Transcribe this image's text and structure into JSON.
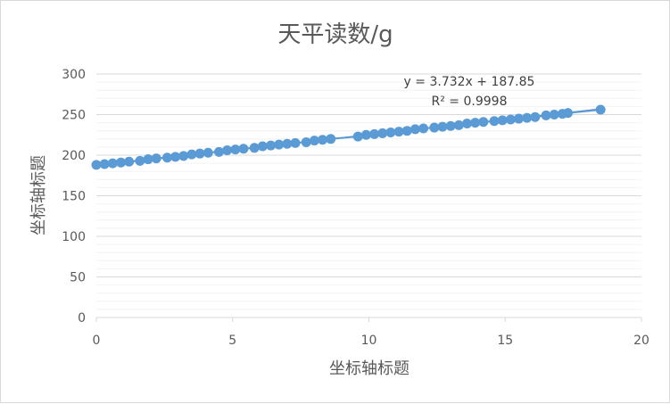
{
  "chart_data": {
    "type": "scatter",
    "title": "天平读数/g",
    "xlabel": "坐标轴标题",
    "ylabel": "坐标轴标题",
    "xlim": [
      0,
      20
    ],
    "ylim": [
      0,
      300
    ],
    "xticks": [
      0,
      5,
      10,
      15,
      20
    ],
    "yticks": [
      0,
      50,
      100,
      150,
      200,
      250,
      300
    ],
    "grid": "major and minor horizontal",
    "legend": "none",
    "colors": {
      "marker": "#5b9bd5",
      "line": "#4472c4",
      "grid": "#d9d9d9",
      "minor_grid": "#f2f2f2",
      "text": "#595959"
    },
    "trendline": {
      "type": "linear",
      "slope": 3.732,
      "intercept": 187.85,
      "equation_label": "y = 3.732x + 187.85",
      "r2_label": "R² = 0.9998"
    },
    "series": [
      {
        "x": [
          0,
          0.3,
          0.6,
          0.9,
          1.2,
          1.6,
          1.9,
          2.2,
          2.6,
          2.9,
          3.2,
          3.5,
          3.8,
          4.1,
          4.5,
          4.8,
          5.1,
          5.4,
          5.8,
          6.1,
          6.4,
          6.7,
          7.0,
          7.3,
          7.7,
          8.0,
          8.3,
          8.6,
          9.6,
          9.9,
          10.2,
          10.5,
          10.8,
          11.1,
          11.4,
          11.7,
          12.0,
          12.4,
          12.7,
          13.0,
          13.3,
          13.6,
          13.9,
          14.2,
          14.6,
          14.9,
          15.2,
          15.5,
          15.8,
          16.1,
          16.5,
          16.8,
          17.1,
          17.3,
          18.5
        ],
        "y": [
          188,
          189,
          190,
          191,
          192,
          193,
          195,
          196,
          197,
          198,
          199,
          201,
          202,
          203,
          204,
          206,
          207,
          208,
          209,
          211,
          212,
          213,
          214,
          215,
          216,
          218,
          219,
          220,
          223,
          225,
          226,
          227,
          228,
          229,
          230,
          232,
          233,
          234,
          235,
          236,
          237,
          239,
          240,
          241,
          242,
          243,
          244,
          245,
          246,
          247,
          249,
          250,
          251,
          252,
          256
        ]
      }
    ]
  }
}
